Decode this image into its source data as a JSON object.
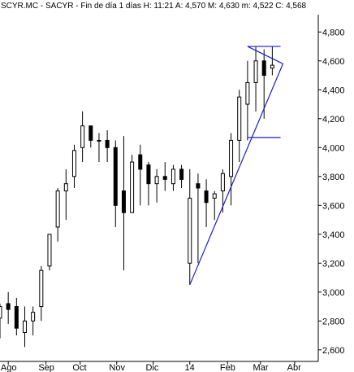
{
  "chart_data": {
    "type": "candlestick",
    "header": "SCYR.MC - SACYR - Fin de día 1 días  H: 11:21  A: 4,570  M: 4,630  m: 4,522  C: 4,568",
    "y_ticks": [
      "4,800",
      "4,600",
      "4,400",
      "4,200",
      "4,000",
      "3,800",
      "3,600",
      "3,400",
      "3,200",
      "3,000",
      "2,800",
      "2,600"
    ],
    "y_tick_values": [
      4.8,
      4.6,
      4.4,
      4.2,
      4.0,
      3.8,
      3.6,
      3.4,
      3.2,
      3.0,
      2.8,
      2.6
    ],
    "ylim": [
      2.52,
      4.92
    ],
    "x_ticks": [
      "Ago",
      "Sep",
      "Oct",
      "Nov",
      "Dic",
      "14",
      "Feb",
      "Mar",
      "Abr"
    ],
    "x_tick_dates": [
      "2013-08-01",
      "2013-09-02",
      "2013-10-01",
      "2013-11-01",
      "2013-12-02",
      "2014-01-02",
      "2014-02-03",
      "2014-03-03",
      "2014-04-01"
    ],
    "grid": false,
    "colors": {
      "candle": "#000000",
      "trendline": "#1c1ccc",
      "axis": "#000000"
    },
    "trendlines": [
      {
        "from": [
          "2014-01-02",
          3.05
        ],
        "to": [
          "2014-03-22",
          4.58
        ]
      },
      {
        "from": [
          "2014-02-20",
          4.7
        ],
        "to": [
          "2014-03-20",
          4.7
        ]
      },
      {
        "from": [
          "2014-02-20",
          4.07
        ],
        "to": [
          "2014-03-20",
          4.07
        ]
      },
      {
        "from": [
          "2014-02-20",
          4.7
        ],
        "to": [
          "2014-03-22",
          4.58
        ]
      }
    ],
    "series": [
      {
        "x": [
          "2013-07-25",
          "2013-08-01",
          "2013-08-08",
          "2013-08-15",
          "2013-08-22",
          "2013-08-29",
          "2013-09-05",
          "2013-09-12",
          "2013-09-19",
          "2013-09-26",
          "2013-10-03",
          "2013-10-10",
          "2013-10-17",
          "2013-10-24",
          "2013-10-31",
          "2013-11-07",
          "2013-11-14",
          "2013-11-21",
          "2013-11-28",
          "2013-12-05",
          "2013-12-12",
          "2013-12-19",
          "2013-12-26",
          "2014-01-02",
          "2014-01-09",
          "2014-01-16",
          "2014-01-23",
          "2014-01-30",
          "2014-02-06",
          "2014-02-13",
          "2014-02-20",
          "2014-02-27",
          "2014-03-06",
          "2014-03-13"
        ],
        "open": [
          2.82,
          2.92,
          2.9,
          2.72,
          2.8,
          2.9,
          3.18,
          3.45,
          3.7,
          3.8,
          4.0,
          4.15,
          4.05,
          4.05,
          4.0,
          3.7,
          3.55,
          3.95,
          3.88,
          3.75,
          3.8,
          3.75,
          3.85,
          3.2,
          3.75,
          3.7,
          3.65,
          3.7,
          3.8,
          4.05,
          4.3,
          4.45,
          4.6,
          4.55
        ],
        "high": [
          2.92,
          3.0,
          2.96,
          2.9,
          2.9,
          3.18,
          3.4,
          3.72,
          3.85,
          4.02,
          4.25,
          4.15,
          4.1,
          4.12,
          4.05,
          4.08,
          3.95,
          4.02,
          3.9,
          3.85,
          3.9,
          3.88,
          3.88,
          3.85,
          3.82,
          3.78,
          3.7,
          3.85,
          4.1,
          4.4,
          4.6,
          4.7,
          4.68,
          4.7
        ],
        "low": [
          2.68,
          2.78,
          2.7,
          2.62,
          2.7,
          2.8,
          3.15,
          3.35,
          3.5,
          3.72,
          3.9,
          4.0,
          3.9,
          3.9,
          3.45,
          3.15,
          3.55,
          3.6,
          3.6,
          3.62,
          3.7,
          3.7,
          3.72,
          3.05,
          3.2,
          3.45,
          3.5,
          3.55,
          3.6,
          3.9,
          4.05,
          4.25,
          4.2,
          4.5
        ],
        "close": [
          2.9,
          2.88,
          2.75,
          2.8,
          2.86,
          3.15,
          3.4,
          3.7,
          3.75,
          3.98,
          4.15,
          4.05,
          4.05,
          4.0,
          3.6,
          3.55,
          3.9,
          3.85,
          3.75,
          3.8,
          3.78,
          3.85,
          3.78,
          3.65,
          3.72,
          3.62,
          3.68,
          3.82,
          4.05,
          4.35,
          4.45,
          4.6,
          4.5,
          4.57
        ]
      }
    ]
  }
}
